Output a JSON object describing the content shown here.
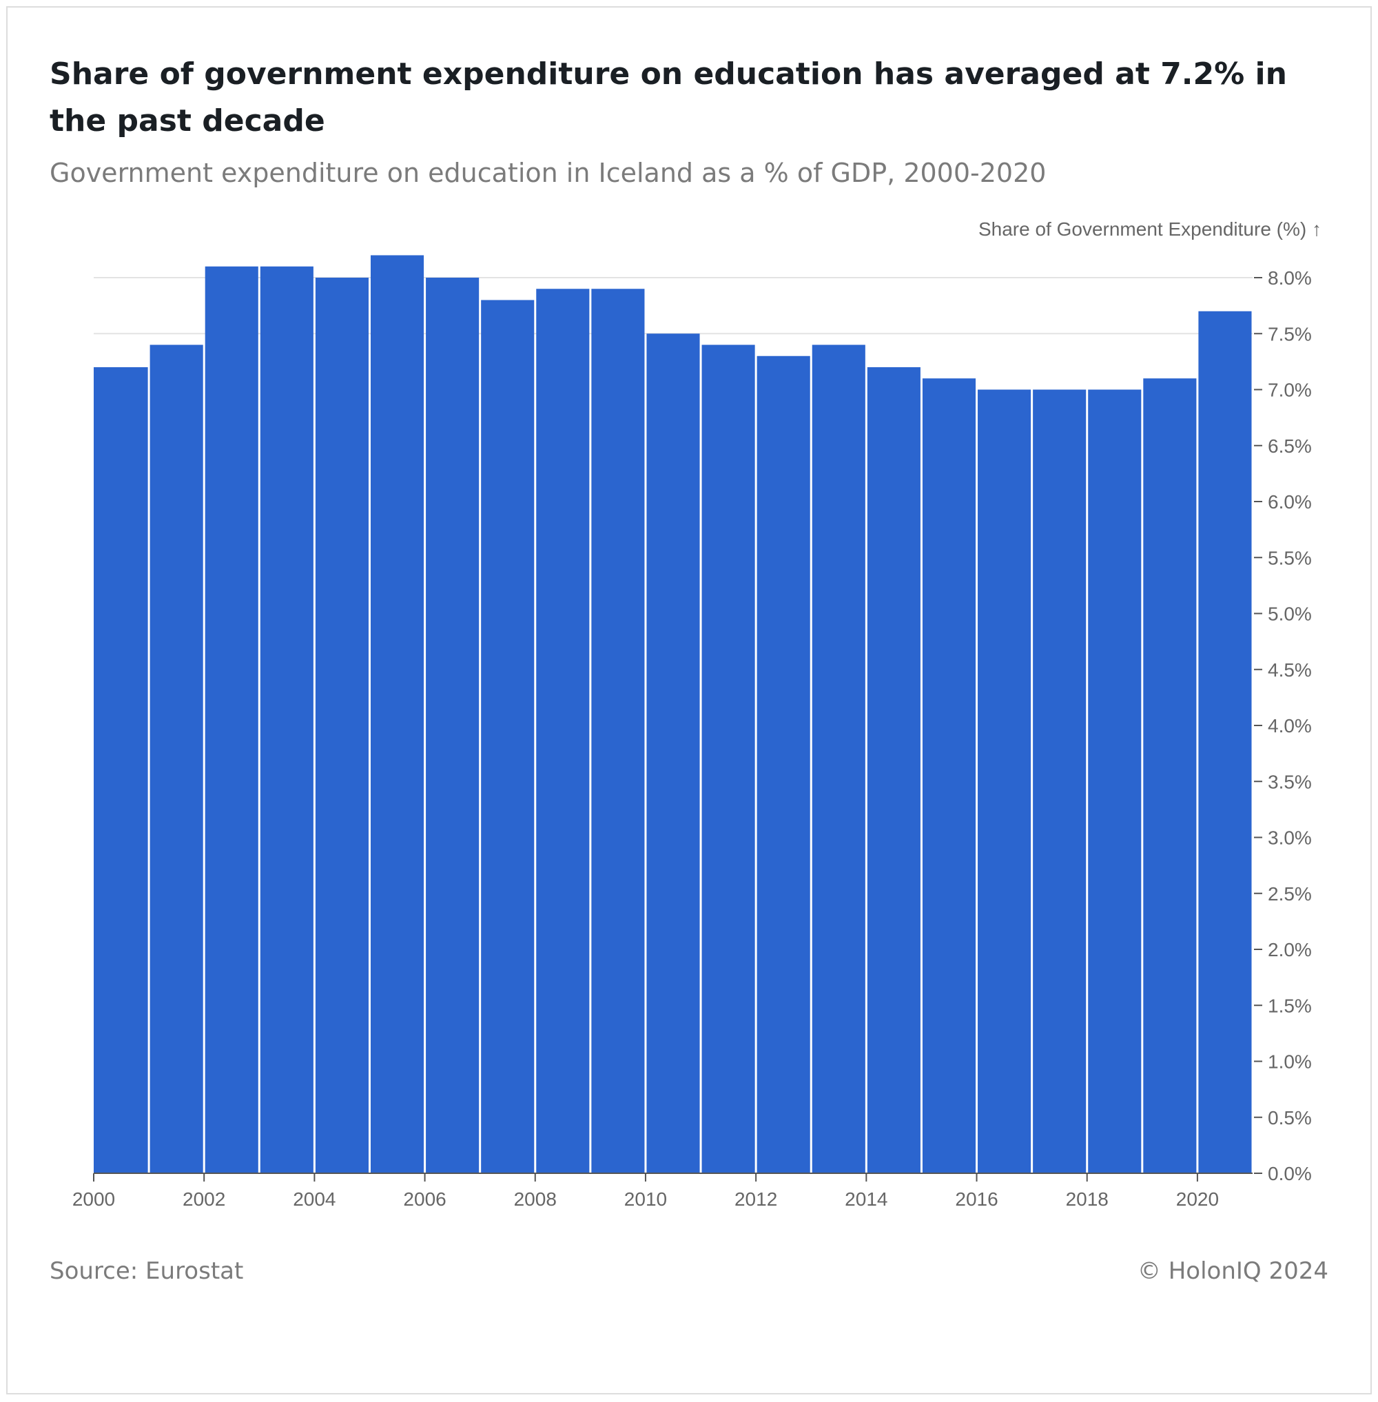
{
  "header": {
    "title": "Share of government expenditure on education has averaged at 7.2% in the past decade",
    "subtitle": "Government expenditure on education in Iceland as a % of GDP, 2000-2020"
  },
  "footer": {
    "source": "Source: Eurostat",
    "copyright": "© HolonIQ 2024"
  },
  "colors": {
    "bar": "#2b65cf",
    "gridline": "#e3e3e3",
    "axis": "#555555",
    "tick_text": "#666666"
  },
  "chart_data": {
    "type": "bar",
    "title": "Share of government expenditure on education has averaged at 7.2% in the past decade",
    "subtitle": "Government expenditure on education in Iceland as a % of GDP, 2000-2020",
    "ylabel": "Share of Government Expenditure (%) ↑",
    "xlabel": "",
    "categories": [
      2000,
      2001,
      2002,
      2003,
      2004,
      2005,
      2006,
      2007,
      2008,
      2009,
      2010,
      2011,
      2012,
      2013,
      2014,
      2015,
      2016,
      2017,
      2018,
      2019,
      2020
    ],
    "values": [
      7.2,
      7.4,
      8.1,
      8.1,
      8.0,
      8.2,
      8.0,
      7.8,
      7.9,
      7.9,
      7.5,
      7.4,
      7.3,
      7.4,
      7.2,
      7.1,
      7.0,
      7.0,
      7.0,
      7.1,
      7.7
    ],
    "x_ticks": [
      "2000",
      "2002",
      "2004",
      "2006",
      "2008",
      "2010",
      "2012",
      "2014",
      "2016",
      "2018",
      "2020"
    ],
    "x_range": [
      2000,
      2021
    ],
    "y_ticks": [
      "0.0%",
      "0.5%",
      "1.0%",
      "1.5%",
      "2.0%",
      "2.5%",
      "3.0%",
      "3.5%",
      "4.0%",
      "4.5%",
      "5.0%",
      "5.5%",
      "6.0%",
      "6.5%",
      "7.0%",
      "7.5%",
      "8.0%"
    ],
    "y_tick_values": [
      0.0,
      0.5,
      1.0,
      1.5,
      2.0,
      2.5,
      3.0,
      3.5,
      4.0,
      4.5,
      5.0,
      5.5,
      6.0,
      6.5,
      7.0,
      7.5,
      8.0
    ],
    "ylim": [
      0,
      8.2
    ],
    "y_axis_side": "right",
    "gridlines": [
      7.5,
      8.0
    ]
  }
}
